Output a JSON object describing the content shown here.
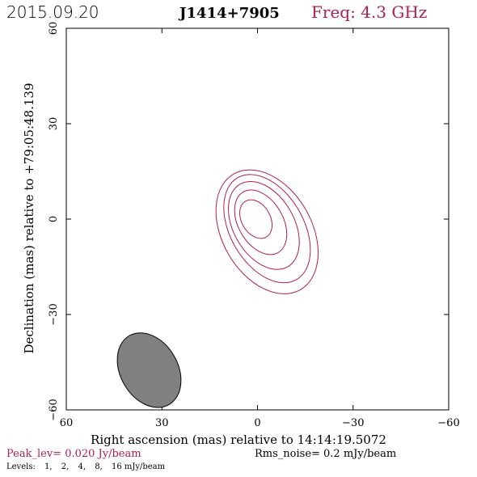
{
  "header": {
    "date": "2015.09.20",
    "source": "J1414+7905",
    "freq_label": "Freq: 4.3 GHz"
  },
  "footer": {
    "peak": "Peak_lev=  0.020 Jy/beam",
    "rms": "Rms_noise=  0.2 mJy/beam",
    "levels_label": "Levels:",
    "levels": [
      "1,",
      "2,",
      "4,",
      "8,",
      "16 mJy/beam"
    ]
  },
  "colors": {
    "contour": "#b0204a",
    "beam_fill": "#808080",
    "axis": "#000000"
  },
  "chart_data": {
    "type": "contour",
    "title": "",
    "xlabel": "Right ascension (mas) relative to 14:14:19.5072",
    "ylabel": "Declination (mas) relative to +79:05:48.139",
    "xlim": [
      60,
      -60
    ],
    "ylim": [
      -60,
      60
    ],
    "xticks": [
      60,
      30,
      0,
      -30,
      -60
    ],
    "yticks": [
      -60,
      -30,
      0,
      30,
      60
    ],
    "xtick_labels": [
      "60",
      "30",
      "0",
      "−30",
      "−60"
    ],
    "ytick_labels": [
      "−60",
      "−30",
      "0",
      "30",
      "60"
    ],
    "grid": false,
    "contours": [
      {
        "level_mjy": 1,
        "cx": -3,
        "cy": -4,
        "a": 14,
        "b": 21,
        "angle_deg": -30
      },
      {
        "level_mjy": 2,
        "cx": -3,
        "cy": -3,
        "a": 11.5,
        "b": 18.5,
        "angle_deg": -30
      },
      {
        "level_mjy": 4,
        "cx": -2,
        "cy": -2,
        "a": 9.5,
        "b": 15,
        "angle_deg": -30
      },
      {
        "level_mjy": 8,
        "cx": -1,
        "cy": -1,
        "a": 7,
        "b": 11,
        "angle_deg": -30
      },
      {
        "level_mjy": 16,
        "cx": 0.5,
        "cy": 0,
        "a": 4.5,
        "b": 6.5,
        "angle_deg": -30
      }
    ],
    "beam": {
      "cx": 34,
      "cy": -47.5,
      "a": 9,
      "b": 12.5,
      "angle_deg": -30
    }
  }
}
